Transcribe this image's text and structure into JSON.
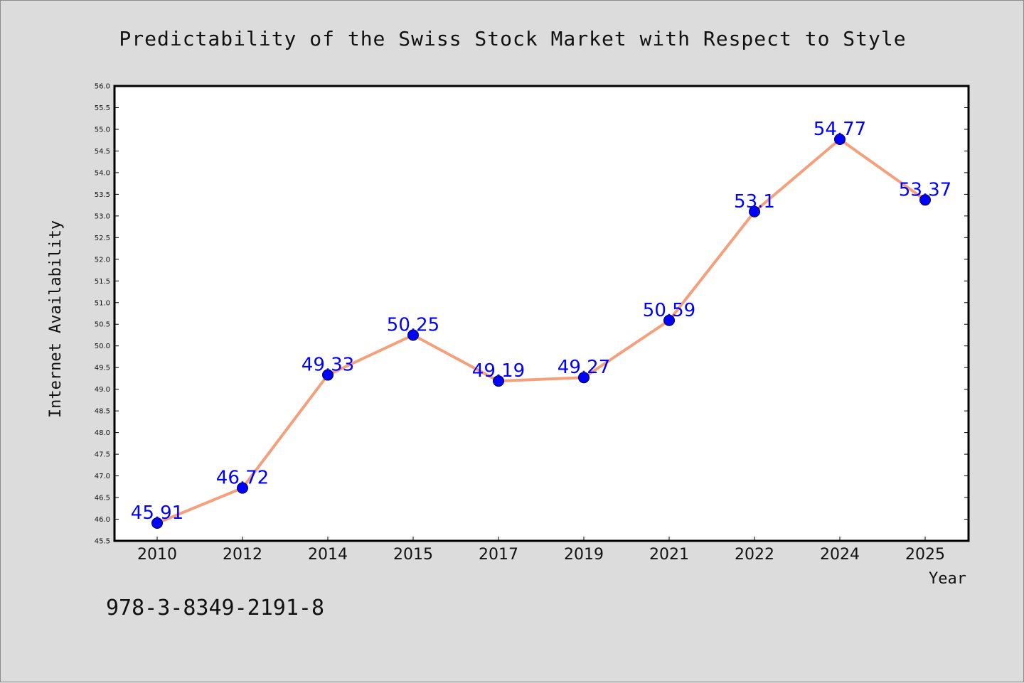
{
  "chart_data": {
    "type": "line",
    "title": "Predictability of the Swiss Stock Market with Respect to Style",
    "xlabel": "Year",
    "ylabel": "Internet Availability",
    "categories": [
      "2010",
      "2012",
      "2014",
      "2015",
      "2017",
      "2019",
      "2021",
      "2022",
      "2024",
      "2025"
    ],
    "series": [
      {
        "values": [
          45.91,
          46.72,
          49.33,
          50.25,
          49.19,
          49.27,
          50.59,
          53.1,
          54.77,
          53.37
        ],
        "labels": [
          "45.91",
          "46.72",
          "49.33",
          "50.25",
          "49.19",
          "49.27",
          "50.59",
          "53.1",
          "54.77",
          "53.37"
        ]
      }
    ],
    "ylim": [
      45.5,
      56.0
    ],
    "ytick_step": 0.5,
    "grid": false,
    "legend": "none",
    "colors": {
      "line": "#f4a07c",
      "marker": "#0000ff",
      "data_label": "#0000ff",
      "plot_background": "#ffffff",
      "figure_background": "#dcdcdc"
    }
  },
  "footnote": "978-3-8349-2191-8"
}
